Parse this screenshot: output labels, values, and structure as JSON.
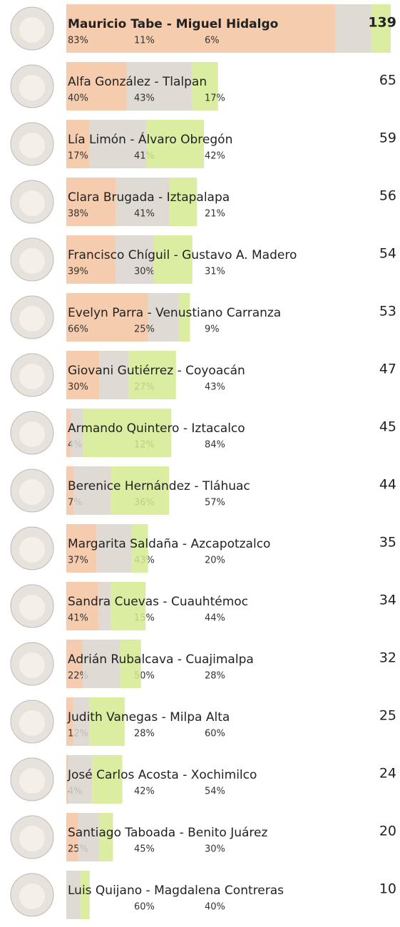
{
  "chart_data": {
    "type": "bar",
    "categories": [
      "Mauricio Tabe - Miguel Hidalgo",
      "Alfa González - Tlalpan",
      "Lía Limón - Álvaro Obregón",
      "Clara Brugada - Iztapalapa",
      "Francisco Chíguil - Gustavo A. Madero",
      "Evelyn Parra - Venustiano Carranza",
      "Giovani Gutiérrez - Coyoacán",
      "Armando Quintero - Iztacalco",
      "Berenice Hernández - Tláhuac",
      "Margarita Saldaña - Azcapotzalco",
      "Sandra Cuevas - Cuauhtémoc",
      "Adrián Rubalcava - Cuajimalpa",
      "Judith Vanegas - Milpa Alta",
      "José Carlos Acosta - Xochimilco",
      "Santiago Taboada - Benito Juárez",
      "Luis Quijano - Magdalena Contreras"
    ],
    "values": [
      139,
      65,
      59,
      56,
      54,
      53,
      47,
      45,
      44,
      35,
      34,
      32,
      25,
      24,
      20,
      10
    ],
    "series": [
      {
        "color": "#f3c3a0",
        "values": [
          83,
          40,
          17,
          38,
          39,
          66,
          30,
          4,
          7,
          37,
          41,
          22,
          12,
          4,
          25,
          null
        ],
        "value_labels": [
          "83%",
          "40%",
          "17%",
          "38%",
          "39%",
          "66%",
          "30%",
          "4%",
          "7%",
          "37%",
          "41%",
          "22%",
          "12%",
          "4%",
          "25%",
          null
        ]
      },
      {
        "color": "#d9d3cd",
        "values": [
          11,
          43,
          41,
          41,
          30,
          25,
          27,
          12,
          36,
          43,
          15,
          50,
          28,
          42,
          45,
          60
        ],
        "value_labels": [
          "11%",
          "43%",
          "41%",
          "41%",
          "30%",
          "25%",
          "27%",
          "12%",
          "36%",
          "43%",
          "15%",
          "50%",
          "28%",
          "42%",
          "45%",
          "60%"
        ]
      },
      {
        "color": "#d3ea90",
        "values": [
          6,
          17,
          42,
          21,
          31,
          9,
          43,
          84,
          57,
          20,
          44,
          28,
          60,
          54,
          30,
          40
        ],
        "value_labels": [
          "6%",
          "17%",
          "42%",
          "21%",
          "31%",
          "9%",
          "43%",
          "84%",
          "57%",
          "20%",
          "44%",
          "28%",
          "60%",
          "54%",
          "30%",
          "40%"
        ]
      }
    ]
  }
}
